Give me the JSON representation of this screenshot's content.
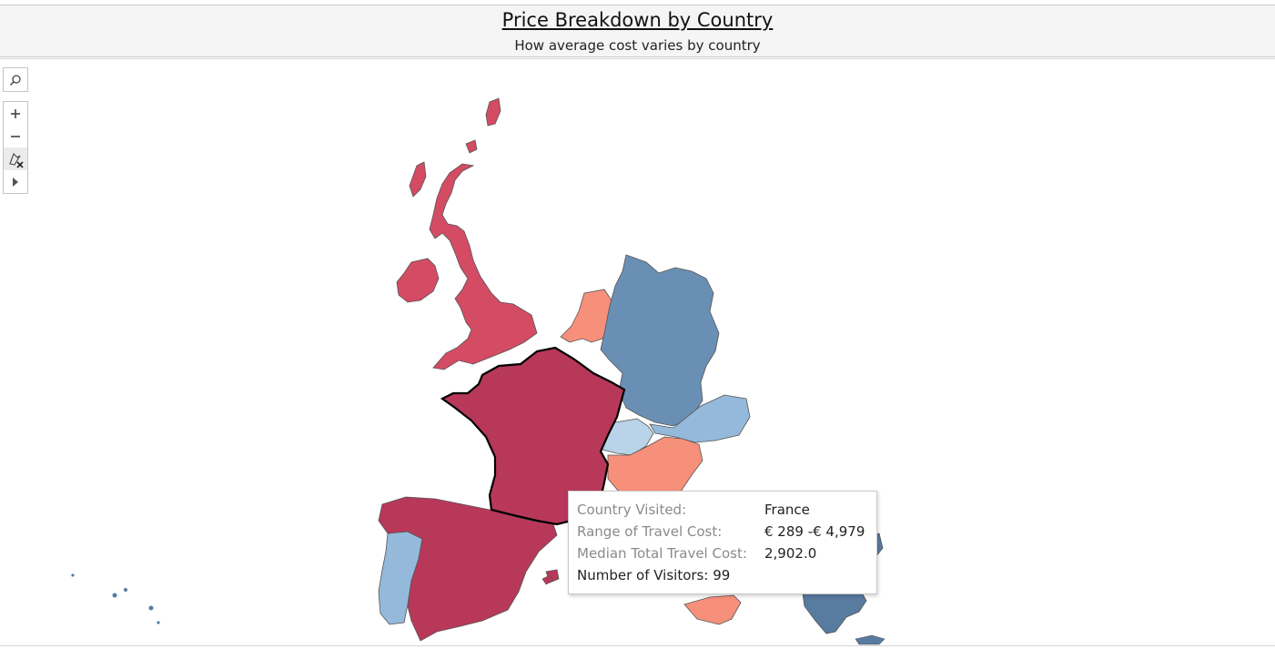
{
  "header": {
    "title": "Price Breakdown by Country",
    "subtitle": "How average cost varies by country"
  },
  "toolbar": {
    "search_icon": "search-icon",
    "zoom_in_icon": "plus-icon",
    "zoom_out_icon": "minus-icon",
    "reset_icon": "pin-reset-icon",
    "expand_icon": "play-icon"
  },
  "colors": {
    "darkest_red": "#b8385a",
    "red": "#d44b64",
    "salmon": "#f7907a",
    "steel_blue": "#6a8fb4",
    "light_blue": "#95b9da",
    "pale_blue": "#b9d3e8",
    "dark_blue": "#587ba0",
    "border": "#555555"
  },
  "countries": [
    {
      "name": "United Kingdom",
      "color_key": "red"
    },
    {
      "name": "France",
      "color_key": "darkest_red",
      "selected": true
    },
    {
      "name": "Spain",
      "color_key": "darkest_red"
    },
    {
      "name": "Portugal",
      "color_key": "light_blue"
    },
    {
      "name": "Netherlands",
      "color_key": "salmon"
    },
    {
      "name": "Germany",
      "color_key": "steel_blue"
    },
    {
      "name": "Austria",
      "color_key": "light_blue"
    },
    {
      "name": "Switzerland",
      "color_key": "pale_blue"
    },
    {
      "name": "Italy",
      "color_key": "salmon"
    },
    {
      "name": "Greece",
      "color_key": "dark_blue"
    }
  ],
  "tooltip": {
    "country_label": "Country Visited:",
    "country_value": "France",
    "range_label": "Range of Travel Cost:",
    "range_value": "€ 289 -€ 4,979",
    "median_label": "Median Total Travel Cost:",
    "median_value": "2,902.0",
    "visitors_text": "Number of Visitors: 99"
  }
}
